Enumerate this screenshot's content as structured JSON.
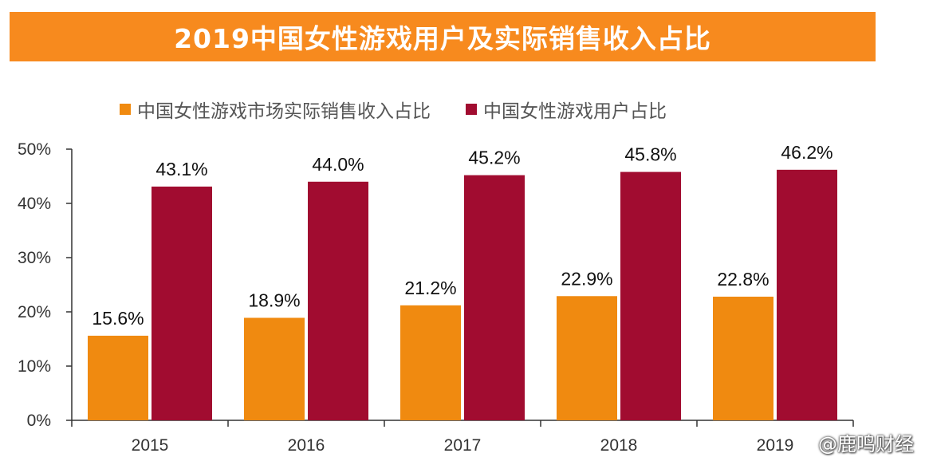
{
  "title": "2019中国女性游戏用户及实际销售收入占比",
  "colors": {
    "title_bg": "#f78a1e",
    "revenue": "#f08a10",
    "users": "#a10c30"
  },
  "watermark": "@鹿鸣财经",
  "chart_data": {
    "type": "bar",
    "title": "2019中国女性游戏用户及实际销售收入占比",
    "categories": [
      "2015",
      "2016",
      "2017",
      "2018",
      "2019"
    ],
    "series": [
      {
        "name": "中国女性游戏市场实际销售收入占比",
        "values": [
          15.6,
          18.9,
          21.2,
          22.9,
          22.8
        ],
        "labels": [
          "15.6%",
          "18.9%",
          "21.2%",
          "22.9%",
          "22.8%"
        ],
        "color": "#f08a10"
      },
      {
        "name": "中国女性游戏用户占比",
        "values": [
          43.1,
          44.0,
          45.2,
          45.8,
          46.2
        ],
        "labels": [
          "43.1%",
          "44.0%",
          "45.2%",
          "45.8%",
          "46.2%"
        ],
        "color": "#a10c30"
      }
    ],
    "yticks": [
      "0%",
      "10%",
      "20%",
      "30%",
      "40%",
      "50%"
    ],
    "ylim": [
      0,
      50
    ],
    "xlabel": "",
    "ylabel": "",
    "grid": false,
    "legend_position": "top"
  }
}
